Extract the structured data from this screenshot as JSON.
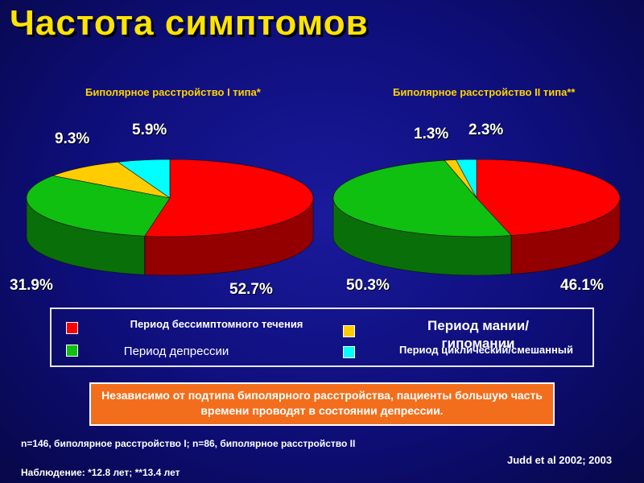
{
  "title": "Частота симптомов",
  "colors": {
    "asymptomatic": "#ff0000",
    "depression": "#10c010",
    "mania": "#ffcc00",
    "mixed": "#00ffff"
  },
  "chart_data": [
    {
      "type": "pie",
      "title": "Биполярное расстройство I типа*",
      "categories": [
        "Период бессимптомного течения",
        "Период депрессии",
        "Период мании/гипомании",
        "Период циклический/смешанный"
      ],
      "values": [
        52.7,
        31.9,
        9.3,
        5.9
      ],
      "labels": [
        "52.7%",
        "31.9%",
        "9.3%",
        "5.9%"
      ]
    },
    {
      "type": "pie",
      "title": "Биполярное расстройство II типа**",
      "categories": [
        "Период бессимптомного течения",
        "Период депрессии",
        "Период мании/гипомании",
        "Период циклический/смешанный"
      ],
      "values": [
        46.1,
        50.3,
        1.3,
        2.3
      ],
      "labels": [
        "46.1%",
        "50.3%",
        "1.3%",
        "2.3%"
      ]
    }
  ],
  "legend": {
    "asymptomatic": "Период бессимптомного течения",
    "depression": "Период депрессии",
    "mania": "Период мании/гипомании",
    "mixed": "Период циклический/смешанный"
  },
  "banner": "Независимо от подтипа биполярного расстройства, пациенты большую часть времени проводят в состоянии депрессии.",
  "footnote_1": "n=146, биполярное расстройство I; n=86, биполярное расстройство II",
  "footnote_2": "Наблюдение: *12.8 лет; **13.4 лет",
  "citation": "Judd et al 2002; 2003"
}
